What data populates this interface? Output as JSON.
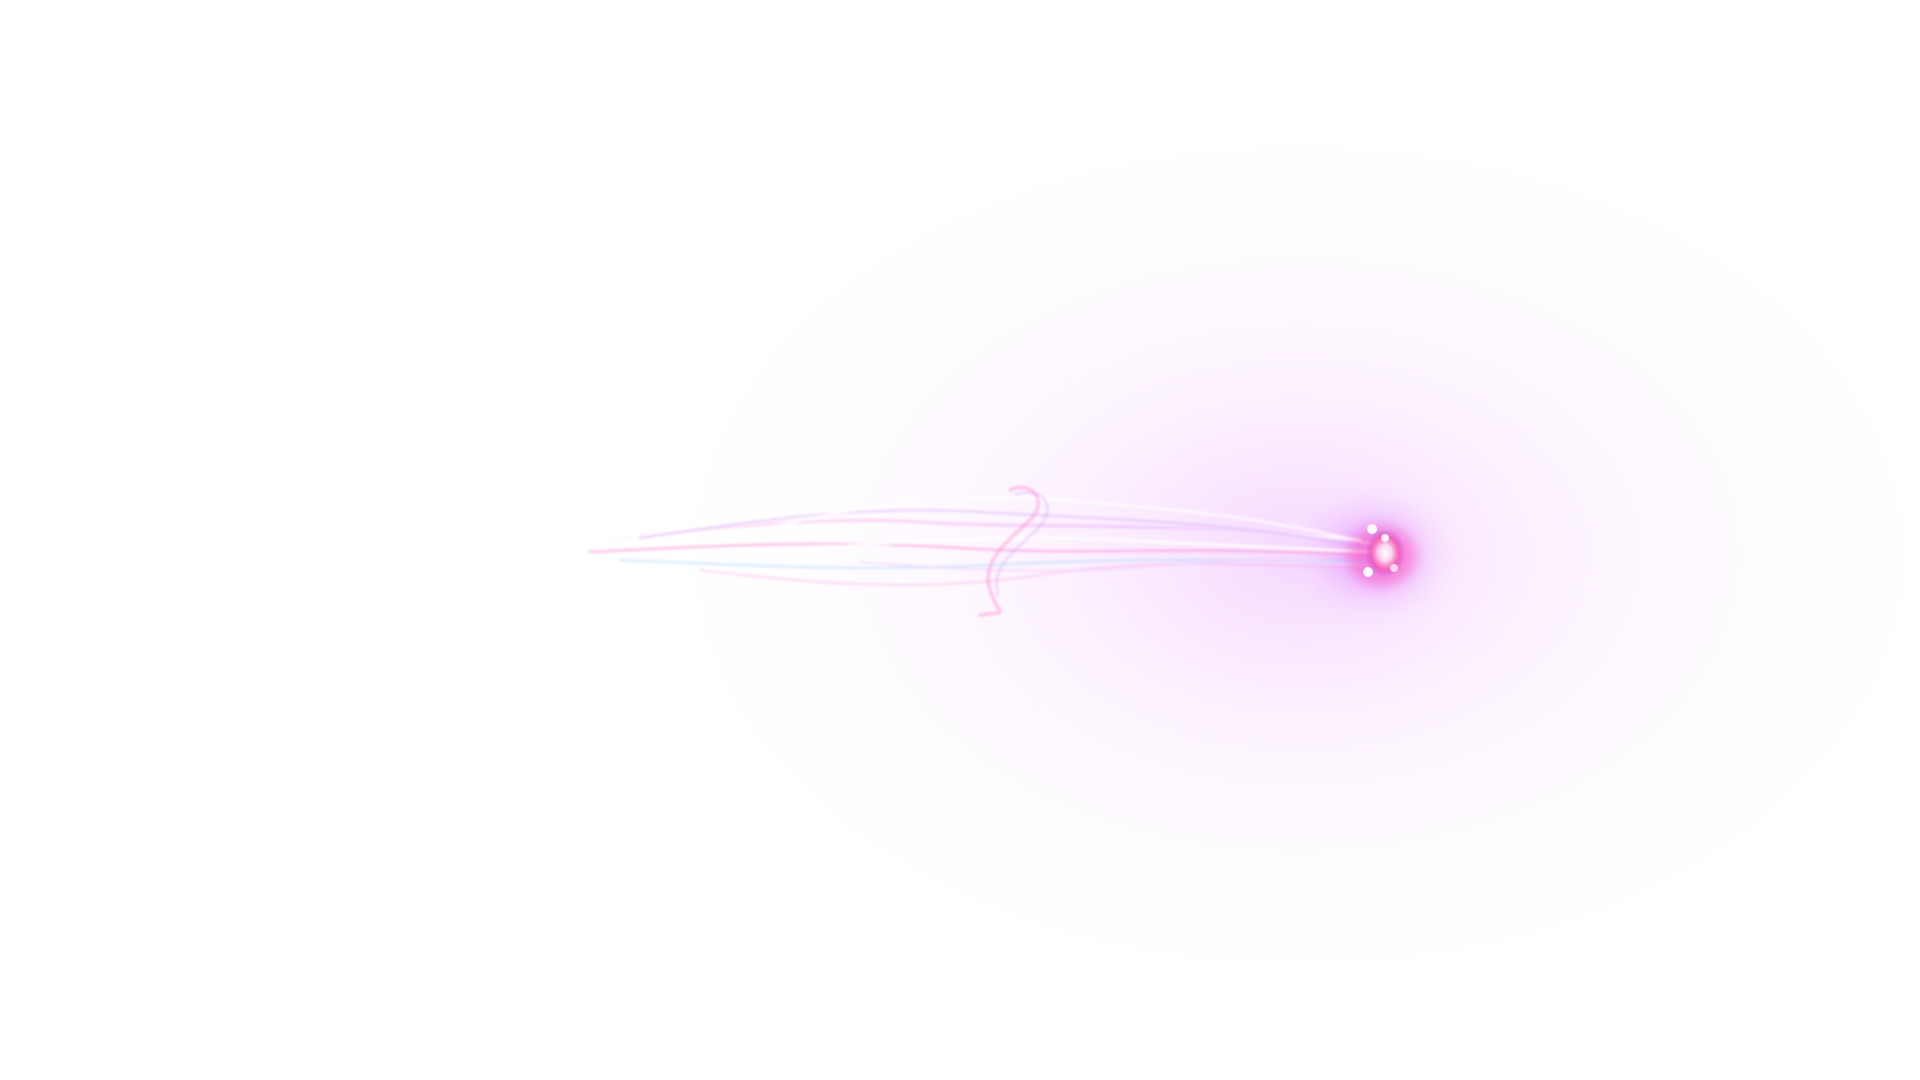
{
  "scene": {
    "background_color": "#ffffff",
    "glow_colors": [
      "#cc33ff",
      "#ff3399",
      "#8a2be2"
    ],
    "trail_colors": [
      "#ff66cc",
      "#cc88ff",
      "#88ccff",
      "#ffffff"
    ],
    "core_colors": [
      "#ffffff",
      "#ff4fa8",
      "#9b5cff"
    ]
  }
}
